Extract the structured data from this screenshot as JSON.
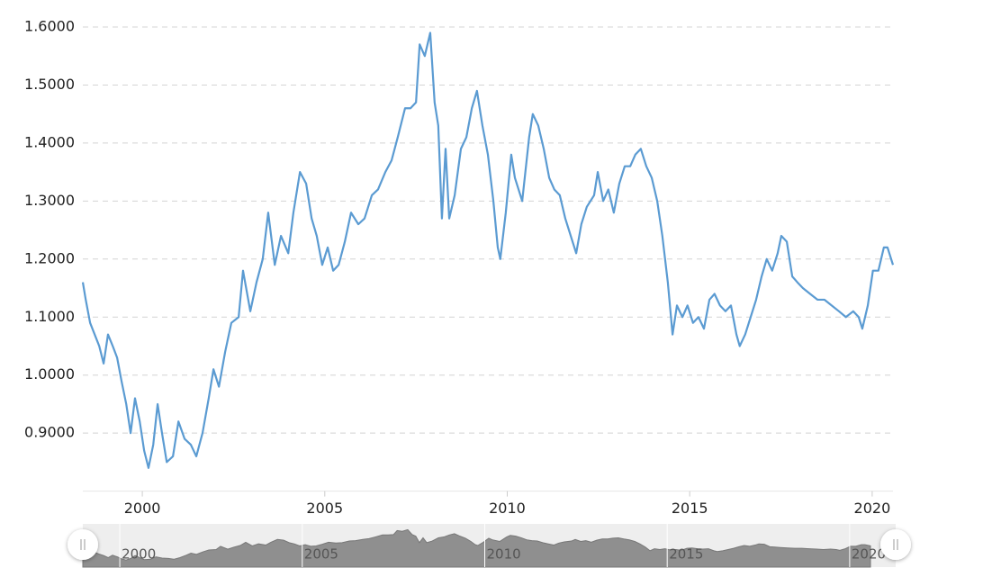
{
  "chart_data": {
    "type": "line",
    "color": "#5b9bd2",
    "grid": true,
    "xlim": [
      1998.37,
      2020.57
    ],
    "xticks": [
      2000,
      2005,
      2010,
      2015,
      2020
    ],
    "ylim": [
      0.8,
      1.6
    ],
    "yticks": [
      {
        "value": 0.9,
        "label": "0.9000"
      },
      {
        "value": 1.0,
        "label": "1.0000"
      },
      {
        "value": 1.1,
        "label": "1.1000"
      },
      {
        "value": 1.2,
        "label": "1.2000"
      },
      {
        "value": 1.3,
        "label": "1.3000"
      },
      {
        "value": 1.4,
        "label": "1.4000"
      },
      {
        "value": 1.5,
        "label": "1.5000"
      },
      {
        "value": 1.6,
        "label": "1.6000"
      }
    ],
    "x": [
      1998.37,
      1998.45,
      1998.57,
      1998.82,
      1998.94,
      1999.06,
      1999.19,
      1999.31,
      1999.43,
      1999.56,
      1999.68,
      1999.8,
      1999.93,
      2000.05,
      2000.17,
      2000.3,
      2000.42,
      2000.54,
      2000.67,
      2000.84,
      2000.99,
      2001.16,
      2001.33,
      2001.48,
      2001.65,
      2001.82,
      2001.95,
      2002.1,
      2002.27,
      2002.44,
      2002.64,
      2002.76,
      2002.96,
      2003.13,
      2003.3,
      2003.45,
      2003.63,
      2003.8,
      2004.0,
      2004.14,
      2004.32,
      2004.49,
      2004.64,
      2004.78,
      2004.93,
      2005.08,
      2005.23,
      2005.38,
      2005.55,
      2005.72,
      2005.92,
      2006.09,
      2006.29,
      2006.46,
      2006.66,
      2006.83,
      2007.0,
      2007.2,
      2007.35,
      2007.5,
      2007.6,
      2007.74,
      2007.89,
      2008.01,
      2008.11,
      2008.21,
      2008.31,
      2008.41,
      2008.56,
      2008.73,
      2008.88,
      2009.03,
      2009.17,
      2009.32,
      2009.47,
      2009.62,
      2009.74,
      2009.81,
      2009.96,
      2010.11,
      2010.21,
      2010.41,
      2010.6,
      2010.7,
      2010.85,
      2011.0,
      2011.15,
      2011.29,
      2011.44,
      2011.59,
      2011.74,
      2011.89,
      2012.03,
      2012.18,
      2012.38,
      2012.48,
      2012.63,
      2012.77,
      2012.92,
      2013.07,
      2013.22,
      2013.37,
      2013.51,
      2013.66,
      2013.81,
      2013.96,
      2014.11,
      2014.25,
      2014.4,
      2014.53,
      2014.65,
      2014.8,
      2014.94,
      2015.09,
      2015.24,
      2015.39,
      2015.54,
      2015.68,
      2015.83,
      2015.98,
      2016.13,
      2016.28,
      2016.37,
      2016.52,
      2016.67,
      2016.82,
      2016.97,
      2017.11,
      2017.26,
      2017.41,
      2017.51,
      2017.66,
      2017.81,
      2017.95,
      2018.1,
      2018.3,
      2018.5,
      2018.69,
      2018.89,
      2019.09,
      2019.28,
      2019.48,
      2019.63,
      2019.73,
      2019.88,
      2020.02,
      2020.17,
      2020.32,
      2020.42,
      2020.57
    ],
    "values": [
      1.16,
      1.13,
      1.09,
      1.05,
      1.02,
      1.07,
      1.05,
      1.03,
      0.99,
      0.95,
      0.9,
      0.96,
      0.92,
      0.87,
      0.84,
      0.88,
      0.95,
      0.9,
      0.85,
      0.86,
      0.92,
      0.89,
      0.88,
      0.86,
      0.9,
      0.96,
      1.01,
      0.98,
      1.04,
      1.09,
      1.1,
      1.18,
      1.11,
      1.16,
      1.2,
      1.28,
      1.19,
      1.24,
      1.21,
      1.28,
      1.35,
      1.33,
      1.27,
      1.24,
      1.19,
      1.22,
      1.18,
      1.19,
      1.23,
      1.28,
      1.26,
      1.27,
      1.31,
      1.32,
      1.35,
      1.37,
      1.41,
      1.46,
      1.46,
      1.47,
      1.57,
      1.55,
      1.59,
      1.47,
      1.43,
      1.27,
      1.39,
      1.27,
      1.31,
      1.39,
      1.41,
      1.46,
      1.49,
      1.43,
      1.38,
      1.3,
      1.22,
      1.2,
      1.28,
      1.38,
      1.34,
      1.3,
      1.41,
      1.45,
      1.43,
      1.39,
      1.34,
      1.32,
      1.31,
      1.27,
      1.24,
      1.21,
      1.26,
      1.29,
      1.31,
      1.35,
      1.3,
      1.32,
      1.28,
      1.33,
      1.36,
      1.36,
      1.38,
      1.39,
      1.36,
      1.34,
      1.3,
      1.24,
      1.16,
      1.07,
      1.12,
      1.1,
      1.12,
      1.09,
      1.1,
      1.08,
      1.13,
      1.14,
      1.12,
      1.11,
      1.12,
      1.07,
      1.05,
      1.07,
      1.1,
      1.13,
      1.17,
      1.2,
      1.18,
      1.21,
      1.24,
      1.23,
      1.17,
      1.16,
      1.15,
      1.14,
      1.13,
      1.13,
      1.12,
      1.11,
      1.1,
      1.11,
      1.1,
      1.08,
      1.12,
      1.18,
      1.18,
      1.22,
      1.22,
      1.19
    ]
  }
}
